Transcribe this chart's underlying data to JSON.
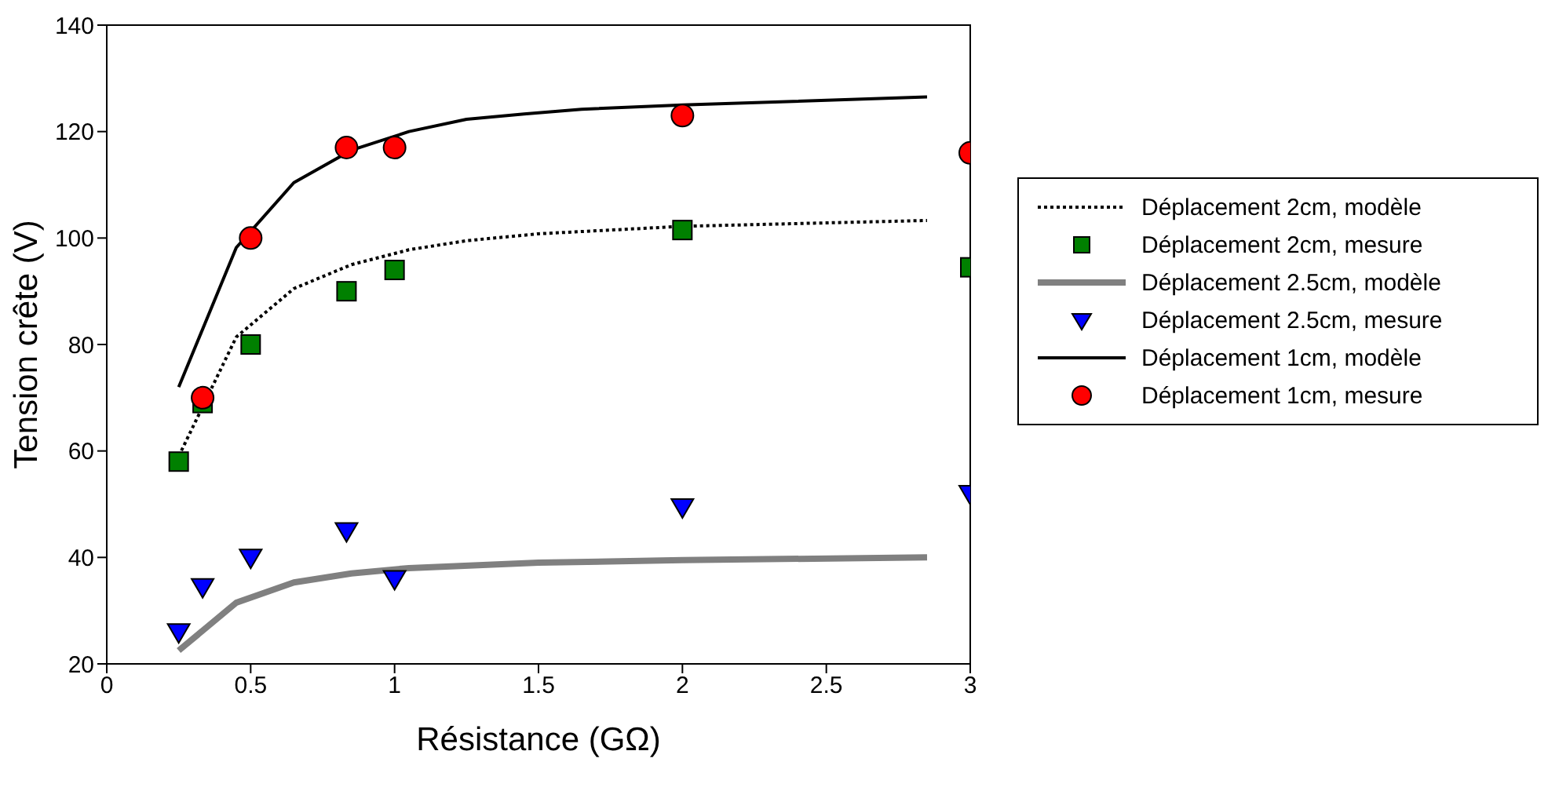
{
  "chart_data": {
    "type": "line",
    "xlabel": "Résistance (GΩ)",
    "ylabel": "Tension crête (V)",
    "xlim": [
      0,
      3
    ],
    "xticks": [
      0,
      0.5,
      1,
      1.5,
      2,
      2.5,
      3
    ],
    "ylim": [
      20,
      140
    ],
    "yticks": [
      20,
      40,
      60,
      80,
      100,
      120,
      140
    ],
    "grid": false,
    "legend": "right",
    "series": [
      {
        "name": "Déplacement 2cm, modèle",
        "color": "#000000",
        "line_style": "dotted",
        "marker": "none",
        "x": [
          0.25,
          0.45,
          0.65,
          0.85,
          1.05,
          1.25,
          1.5,
          2,
          2.85
        ],
        "values": [
          59,
          81.4,
          90.5,
          95,
          97.8,
          99.5,
          100.8,
          102.2,
          103.3
        ]
      },
      {
        "name": "Déplacement 2cm, mesure",
        "type": "scatter",
        "color": "#008000",
        "marker": "square",
        "x": [
          0.25,
          0.333,
          0.5,
          0.833,
          1,
          2,
          3
        ],
        "values": [
          58,
          69,
          80,
          90,
          94,
          101.5,
          94.5
        ]
      },
      {
        "name": "Déplacement 2.5cm, modèle",
        "color": "#808080",
        "line_style": "solid",
        "marker": "none",
        "x": [
          0.25,
          0.45,
          0.65,
          0.85,
          1.05,
          1.5,
          2,
          2.85
        ],
        "values": [
          22.5,
          31.5,
          35.3,
          37,
          38,
          39,
          39.5,
          40
        ]
      },
      {
        "name": "Déplacement 2.5cm, mesure",
        "type": "scatter",
        "color": "#0000ff",
        "marker": "triangle",
        "x": [
          0.25,
          0.333,
          0.5,
          0.833,
          1,
          2,
          3
        ],
        "values": [
          26,
          34.5,
          40,
          45,
          36,
          49.5,
          52
        ]
      },
      {
        "name": "Déplacement 1cm, modèle",
        "color": "#000000",
        "line_style": "solid",
        "marker": "none",
        "x": [
          0.25,
          0.45,
          0.65,
          0.85,
          1.05,
          1.25,
          1.45,
          1.65,
          2,
          2.85
        ],
        "values": [
          72,
          98.2,
          110.4,
          116.5,
          120,
          122.3,
          123.3,
          124.2,
          125,
          126.5
        ]
      },
      {
        "name": "Déplacement 1cm, mesure",
        "type": "scatter",
        "color": "#ff0000",
        "marker": "circle",
        "x": [
          0.333,
          0.5,
          0.833,
          1,
          2,
          3
        ],
        "values": [
          70,
          100,
          117,
          117,
          123,
          116
        ]
      }
    ]
  }
}
